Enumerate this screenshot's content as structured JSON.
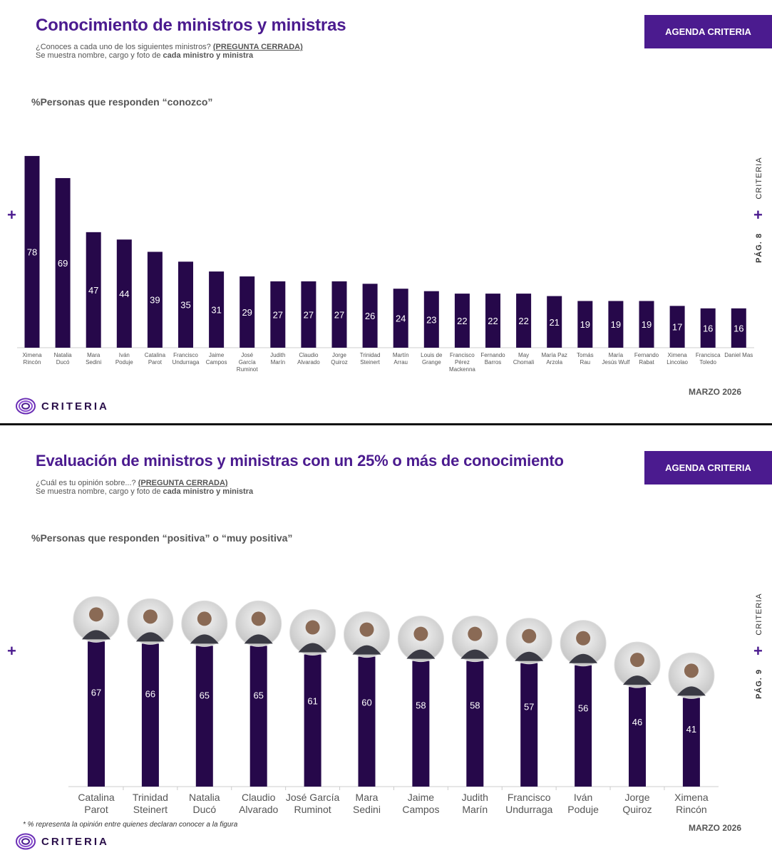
{
  "colors": {
    "brand": "#4b1b8f",
    "bar": "#26084a",
    "dark": "#2a0f4a"
  },
  "slide1": {
    "title": "Conocimiento de ministros y ministras",
    "question": "¿Conoces a cada uno de los siguientes ministros?",
    "question_tag": "(PREGUNTA CERRADA)",
    "shown_prefix": "Se muestra nombre, cargo y foto de",
    "shown_bold": "cada ministro y ministra",
    "tag": "AGENDA CRITERIA",
    "measure": "%Personas que responden “conozco”",
    "side_brand": "CRITERIA",
    "side_page": "PÁG. 8",
    "plus": "+",
    "date": "MARZO 2026",
    "logo": "CRITERIA"
  },
  "slide2": {
    "title": "Evaluación de ministros y ministras con un 25% o más de conocimiento",
    "question": "¿Cuál es tu opinión sobre...?",
    "question_tag": "(PREGUNTA CERRADA)",
    "shown_prefix": "Se muestra nombre, cargo y foto de",
    "shown_bold": "cada ministro y ministra",
    "tag": "AGENDA CRITERIA",
    "measure": "%Personas que responden “positiva” o “muy positiva”",
    "side_brand": "CRITERIA",
    "side_page": "PÁG. 9",
    "plus": "+",
    "date": "MARZO 2026",
    "logo": "CRITERIA",
    "note": "* % representa la opinión entre quienes declaran conocer a la figura"
  },
  "chart_data": [
    {
      "type": "bar",
      "title": "Conocimiento de ministros y ministras",
      "ylabel": "%Personas que responden “conozco”",
      "ylim": [
        0,
        100
      ],
      "grid": false,
      "categories": [
        [
          "Ximena",
          "Rincón"
        ],
        [
          "Natalia",
          "Ducó"
        ],
        [
          "Mara",
          "Sedini"
        ],
        [
          "Iván",
          "Poduje"
        ],
        [
          "Catalina",
          "Parot"
        ],
        [
          "Francisco",
          "Undurraga"
        ],
        [
          "Jaime",
          "Campos"
        ],
        [
          "José",
          "García",
          "Ruminot"
        ],
        [
          "Judith",
          "Marín"
        ],
        [
          "Claudio",
          "Alvarado"
        ],
        [
          "Jorge",
          "Quiroz"
        ],
        [
          "Trinidad",
          "Steinert"
        ],
        [
          "Martín",
          "Arrau"
        ],
        [
          "Louis de",
          "Grange"
        ],
        [
          "Francisco",
          "Pérez",
          "Mackenna"
        ],
        [
          "Fernando",
          "Barros"
        ],
        [
          "May",
          "Chomali"
        ],
        [
          "María Paz",
          "Arzola"
        ],
        [
          "Tomás",
          "Rau"
        ],
        [
          "María",
          "Jesús Wulf"
        ],
        [
          "Fernando",
          "Rabat"
        ],
        [
          "Ximena",
          "Lincolao"
        ],
        [
          "Francisca",
          "Toledo"
        ],
        [
          "Daniel Mas"
        ]
      ],
      "values": [
        78,
        69,
        47,
        44,
        39,
        35,
        31,
        29,
        27,
        27,
        27,
        26,
        24,
        23,
        22,
        22,
        22,
        21,
        19,
        19,
        19,
        17,
        16,
        16
      ]
    },
    {
      "type": "bar",
      "title": "Evaluación de ministros y ministras con un 25% o más de conocimiento",
      "ylabel": "%Personas que responden “positiva” o “muy positiva”",
      "ylim": [
        0,
        100
      ],
      "grid": false,
      "categories": [
        [
          "Catalina",
          "Parot"
        ],
        [
          "Trinidad",
          "Steinert"
        ],
        [
          "Natalia",
          "Ducó"
        ],
        [
          "Claudio",
          "Alvarado"
        ],
        [
          "José García",
          "Ruminot"
        ],
        [
          "Mara",
          "Sedini"
        ],
        [
          "Jaime",
          "Campos"
        ],
        [
          "Judith",
          "Marín"
        ],
        [
          "Francisco",
          "Undurraga"
        ],
        [
          "Iván",
          "Poduje"
        ],
        [
          "Jorge",
          "Quiroz"
        ],
        [
          "Ximena",
          "Rincón"
        ]
      ],
      "values": [
        67,
        66,
        65,
        65,
        61,
        60,
        58,
        58,
        57,
        56,
        46,
        41
      ]
    }
  ]
}
